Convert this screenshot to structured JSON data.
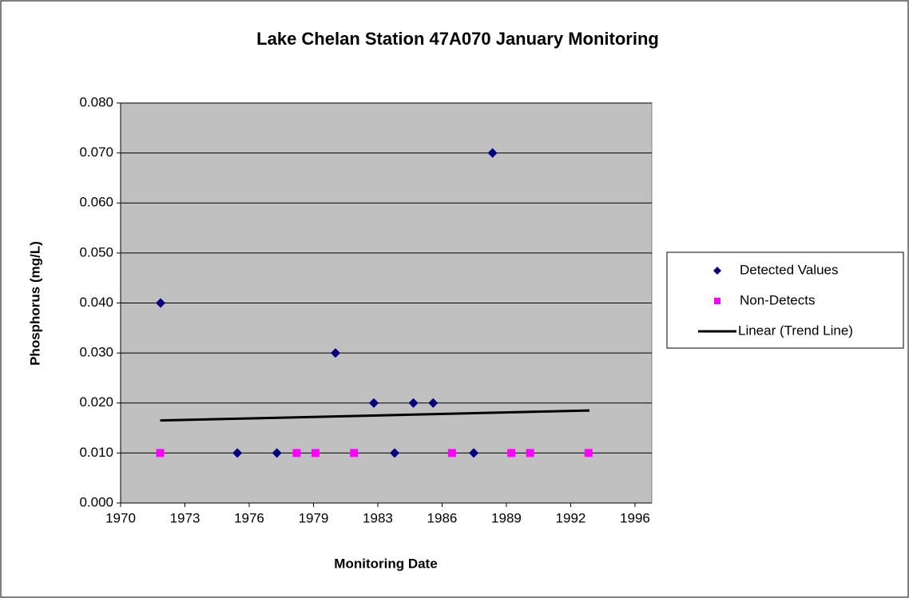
{
  "chart_data": {
    "type": "scatter",
    "title": "Lake Chelan Station 47A070 January Monitoring",
    "x_label": "Monitoring Date",
    "y_label": "Phosphorus (mg/L)",
    "xlim": [
      1970,
      1996.85
    ],
    "ylim": [
      0,
      0.08
    ],
    "xticks": [
      {
        "value": 1970,
        "label": "1970"
      },
      {
        "value": 1973.25,
        "label": "1973"
      },
      {
        "value": 1976.5,
        "label": "1976"
      },
      {
        "value": 1979.75,
        "label": "1979"
      },
      {
        "value": 1983,
        "label": "1983"
      },
      {
        "value": 1986.25,
        "label": "1986"
      },
      {
        "value": 1989.5,
        "label": "1989"
      },
      {
        "value": 1992.75,
        "label": "1992"
      },
      {
        "value": 1996,
        "label": "1996"
      }
    ],
    "yticks": [
      {
        "value": 0,
        "label": "0.000"
      },
      {
        "value": 0.01,
        "label": "0.010"
      },
      {
        "value": 0.02,
        "label": "0.020"
      },
      {
        "value": 0.03,
        "label": "0.030"
      },
      {
        "value": 0.04,
        "label": "0.040"
      },
      {
        "value": 0.05,
        "label": "0.050"
      },
      {
        "value": 0.06,
        "label": "0.060"
      },
      {
        "value": 0.07,
        "label": "0.070"
      },
      {
        "value": 0.08,
        "label": "0.080"
      }
    ],
    "grid": true,
    "legend": "right",
    "series": [
      {
        "name": "Detected Values",
        "color": "#000080",
        "marker": "diamond",
        "x": [
          1972.02,
          1975.9,
          1977.9,
          1980.86,
          1982.8,
          1983.85,
          1984.8,
          1985.8,
          1987.85,
          1988.8
        ],
        "values": [
          0.04,
          0.01,
          0.01,
          0.03,
          0.02,
          0.01,
          0.02,
          0.02,
          0.01,
          0.07
        ]
      },
      {
        "name": "Non-Detects",
        "color": "#ff00ff",
        "marker": "square",
        "x": [
          1972.0,
          1978.9,
          1979.85,
          1981.8,
          1986.75,
          1989.75,
          1990.7,
          1993.65
        ],
        "values": [
          0.01,
          0.01,
          0.01,
          0.01,
          0.01,
          0.01,
          0.01,
          0.01
        ]
      },
      {
        "name": "Linear (Trend Line)",
        "color": "#000000",
        "marker": "line",
        "x": [
          1972.0,
          1993.7
        ],
        "values": [
          0.0165,
          0.0185
        ]
      }
    ]
  }
}
